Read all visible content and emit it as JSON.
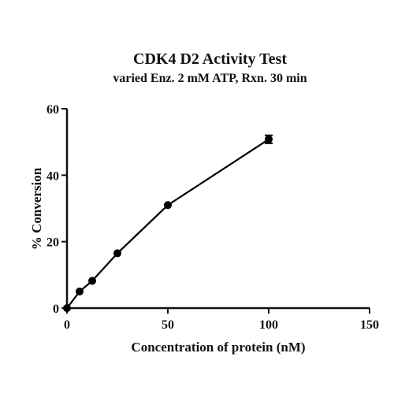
{
  "chart_data": {
    "type": "scatter",
    "title": "CDK4 D2 Activity Test",
    "subtitle": "varied Enz. 2 mM ATP, Rxn. 30 min",
    "xlabel": "Concentration of protein (nM)",
    "ylabel": "% Conversion",
    "xlim": [
      0,
      150
    ],
    "ylim": [
      0,
      60
    ],
    "x_ticks": [
      0,
      50,
      100,
      150
    ],
    "y_ticks": [
      0,
      20,
      40,
      60
    ],
    "grid": false,
    "series": [
      {
        "x": [
          0,
          6.25,
          12.5,
          25,
          50,
          100
        ],
        "y": [
          0,
          5,
          8.2,
          16.5,
          31,
          50.8
        ],
        "error": [
          0,
          0,
          0,
          0,
          0,
          1.2
        ],
        "color": "#000000",
        "marker": "circle",
        "connected": true
      }
    ]
  }
}
